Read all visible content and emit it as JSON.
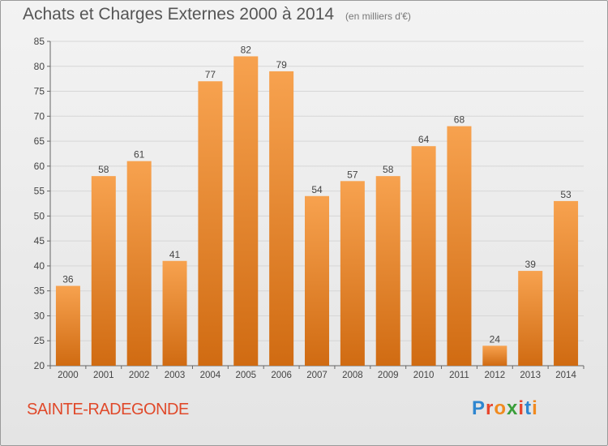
{
  "title": "Achats et Charges Externes 2000 à 2014",
  "subtitle": "(en milliers d'€)",
  "city": "SAINTE-RADEGONDE",
  "brand": {
    "text": "Proxiti",
    "letter_colors": [
      "#2e86d0",
      "#e8452c",
      "#f08a1f",
      "#3a9e3a",
      "#e8452c",
      "#2e86d0",
      "#f08a1f"
    ]
  },
  "colors": {
    "bar_top": "#f7a24f",
    "bar_bottom": "#d06b12",
    "grid": "#d6d6d6",
    "city_text": "#e0492a"
  },
  "chart_data": {
    "type": "bar",
    "title": "Achats et Charges Externes 2000 à 2014",
    "subtitle": "(en milliers d'€)",
    "categories": [
      "2000",
      "2001",
      "2002",
      "2003",
      "2004",
      "2005",
      "2006",
      "2007",
      "2008",
      "2009",
      "2010",
      "2011",
      "2012",
      "2013",
      "2014"
    ],
    "values": [
      36,
      58,
      61,
      41,
      77,
      82,
      79,
      54,
      57,
      58,
      64,
      68,
      24,
      39,
      53
    ],
    "xlabel": "",
    "ylabel": "",
    "ylim": [
      20,
      85
    ],
    "yticks": [
      20,
      25,
      30,
      35,
      40,
      45,
      50,
      55,
      60,
      65,
      70,
      75,
      80,
      85
    ],
    "grid": true,
    "legend": "none"
  }
}
